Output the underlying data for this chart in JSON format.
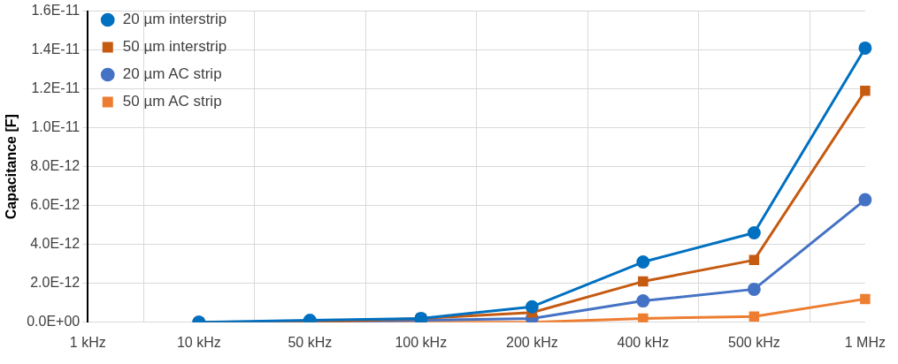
{
  "chart_data": {
    "type": "line",
    "ylabel": "Capacitance [F]",
    "categories": [
      "1 kHz",
      "10 kHz",
      "50 kHz",
      "100 kHz",
      "200 kHz",
      "400 kHz",
      "500 kHz",
      "1 MHz"
    ],
    "series": [
      {
        "name": "20 µm interstrip",
        "color": "#0070c0",
        "marker": "circle",
        "values": [
          null,
          0,
          1e-13,
          2e-13,
          8e-13,
          3.1e-12,
          4.6e-12,
          1.41e-11
        ]
      },
      {
        "name": "50 µm interstrip",
        "color": "#c55a11",
        "marker": "square",
        "values": [
          null,
          0,
          0,
          2e-13,
          5e-13,
          2.1e-12,
          3.2e-12,
          1.19e-11
        ]
      },
      {
        "name": "20 µm AC strip",
        "color": "#4472c4",
        "marker": "circle",
        "values": [
          null,
          0,
          0,
          1e-13,
          2e-13,
          1.1e-12,
          1.7e-12,
          6.3e-12
        ]
      },
      {
        "name": "50 µm AC strip",
        "color": "#ed7d31",
        "marker": "square",
        "values": [
          null,
          0,
          0,
          0,
          0,
          2e-13,
          3e-13,
          1.2e-12
        ]
      }
    ],
    "ylim": [
      0,
      1.6e-11
    ],
    "yticks": [
      {
        "value": 0,
        "label": "0.0E+00"
      },
      {
        "value": 2e-12,
        "label": "2.0E-12"
      },
      {
        "value": 4e-12,
        "label": "4.0E-12"
      },
      {
        "value": 6e-12,
        "label": "6.0E-12"
      },
      {
        "value": 8e-12,
        "label": "8.0E-12"
      },
      {
        "value": 1e-11,
        "label": "1.0E-11"
      },
      {
        "value": 1.2e-11,
        "label": "1.2E-11"
      },
      {
        "value": 1.4e-11,
        "label": "1.4E-11"
      },
      {
        "value": 1.6e-11,
        "label": "1.6E-11"
      }
    ],
    "grid": true,
    "legend": "top left",
    "line_style": "solid"
  }
}
